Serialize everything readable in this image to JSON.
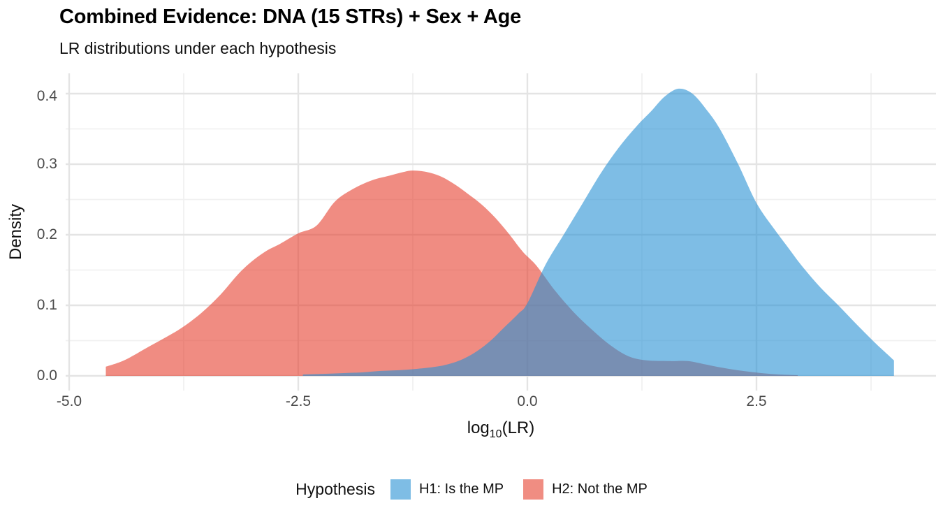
{
  "title": "Combined Evidence: DNA (15 STRs) + Sex + Age",
  "subtitle": "LR distributions under each hypothesis",
  "chart_data": {
    "type": "area",
    "title": "Combined Evidence: DNA (15 STRs) + Sex + Age",
    "subtitle": "LR distributions under each hypothesis",
    "xlabel": {
      "before": "log",
      "sub": "10",
      "after": "(LR)"
    },
    "ylabel": "Density",
    "xlim": [
      -5.03,
      4.53
    ],
    "ylim": [
      -0.02,
      0.434
    ],
    "grid": "on",
    "legend_position": "bottom",
    "legend_title": "Hypothesis",
    "x_ticks": [
      {
        "value": -5.0,
        "label": "-5.0"
      },
      {
        "value": -2.5,
        "label": "-2.5"
      },
      {
        "value": 0.0,
        "label": "0.0"
      },
      {
        "value": 2.5,
        "label": "2.5"
      }
    ],
    "x_minor_ticks": [
      -3.75,
      -1.25,
      1.25,
      3.75
    ],
    "y_ticks": [
      {
        "value": 0.0,
        "label": "0.0"
      },
      {
        "value": 0.1,
        "label": "0.1"
      },
      {
        "value": 0.2,
        "label": "0.2"
      },
      {
        "value": 0.3,
        "label": "0.3"
      },
      {
        "value": 0.4,
        "label": "0.4"
      }
    ],
    "y_minor_ticks": [
      0.05,
      0.15,
      0.25,
      0.35
    ],
    "colors": {
      "grid_major": "#e4e4e4",
      "grid_minor": "#f1f1f1",
      "axis_text": "#4a4a4a"
    },
    "series": [
      {
        "name": "H1: Is the MP",
        "fill": "rgba(40,145,212,0.6)",
        "key_color": "#7ebde5",
        "peak": {
          "x": 1.65,
          "density": 0.407
        },
        "points": [
          [
            -2.45,
            0.002
          ],
          [
            -2.2,
            0.003
          ],
          [
            -2.0,
            0.004
          ],
          [
            -1.8,
            0.005
          ],
          [
            -1.6,
            0.007
          ],
          [
            -1.4,
            0.008
          ],
          [
            -1.2,
            0.01
          ],
          [
            -1.0,
            0.013
          ],
          [
            -0.85,
            0.017
          ],
          [
            -0.7,
            0.024
          ],
          [
            -0.55,
            0.035
          ],
          [
            -0.4,
            0.05
          ],
          [
            -0.25,
            0.069
          ],
          [
            -0.1,
            0.088
          ],
          [
            0.0,
            0.103
          ],
          [
            0.2,
            0.158
          ],
          [
            0.4,
            0.201
          ],
          [
            0.6,
            0.244
          ],
          [
            0.8,
            0.287
          ],
          [
            1.0,
            0.324
          ],
          [
            1.2,
            0.355
          ],
          [
            1.35,
            0.375
          ],
          [
            1.5,
            0.396
          ],
          [
            1.65,
            0.407
          ],
          [
            1.8,
            0.4
          ],
          [
            1.95,
            0.378
          ],
          [
            2.1,
            0.35
          ],
          [
            2.3,
            0.3
          ],
          [
            2.5,
            0.245
          ],
          [
            2.7,
            0.207
          ],
          [
            2.85,
            0.181
          ],
          [
            3.0,
            0.155
          ],
          [
            3.2,
            0.125
          ],
          [
            3.4,
            0.099
          ],
          [
            3.6,
            0.072
          ],
          [
            3.8,
            0.046
          ],
          [
            3.95,
            0.028
          ],
          [
            4.0,
            0.022
          ]
        ]
      },
      {
        "name": "H2: Not the MP",
        "fill": "rgba(230,64,47,0.6)",
        "key_color": "#f08d82",
        "peak": {
          "x": -1.25,
          "density": 0.291
        },
        "points": [
          [
            -4.6,
            0.013
          ],
          [
            -4.4,
            0.022
          ],
          [
            -4.15,
            0.04
          ],
          [
            -3.9,
            0.058
          ],
          [
            -3.75,
            0.07
          ],
          [
            -3.55,
            0.09
          ],
          [
            -3.35,
            0.115
          ],
          [
            -3.15,
            0.145
          ],
          [
            -3.0,
            0.163
          ],
          [
            -2.85,
            0.177
          ],
          [
            -2.7,
            0.187
          ],
          [
            -2.5,
            0.202
          ],
          [
            -2.3,
            0.213
          ],
          [
            -2.1,
            0.247
          ],
          [
            -1.9,
            0.265
          ],
          [
            -1.7,
            0.277
          ],
          [
            -1.5,
            0.284
          ],
          [
            -1.35,
            0.289
          ],
          [
            -1.25,
            0.291
          ],
          [
            -1.1,
            0.289
          ],
          [
            -0.95,
            0.283
          ],
          [
            -0.8,
            0.272
          ],
          [
            -0.65,
            0.258
          ],
          [
            -0.5,
            0.243
          ],
          [
            -0.35,
            0.224
          ],
          [
            -0.2,
            0.201
          ],
          [
            -0.05,
            0.176
          ],
          [
            0.1,
            0.156
          ],
          [
            0.3,
            0.121
          ],
          [
            0.5,
            0.091
          ],
          [
            0.7,
            0.066
          ],
          [
            0.9,
            0.044
          ],
          [
            1.1,
            0.028
          ],
          [
            1.3,
            0.022
          ],
          [
            1.55,
            0.021
          ],
          [
            1.75,
            0.021
          ],
          [
            1.95,
            0.016
          ],
          [
            2.15,
            0.011
          ],
          [
            2.35,
            0.007
          ],
          [
            2.55,
            0.004
          ],
          [
            2.75,
            0.002
          ],
          [
            2.95,
            0.001
          ]
        ]
      }
    ]
  }
}
